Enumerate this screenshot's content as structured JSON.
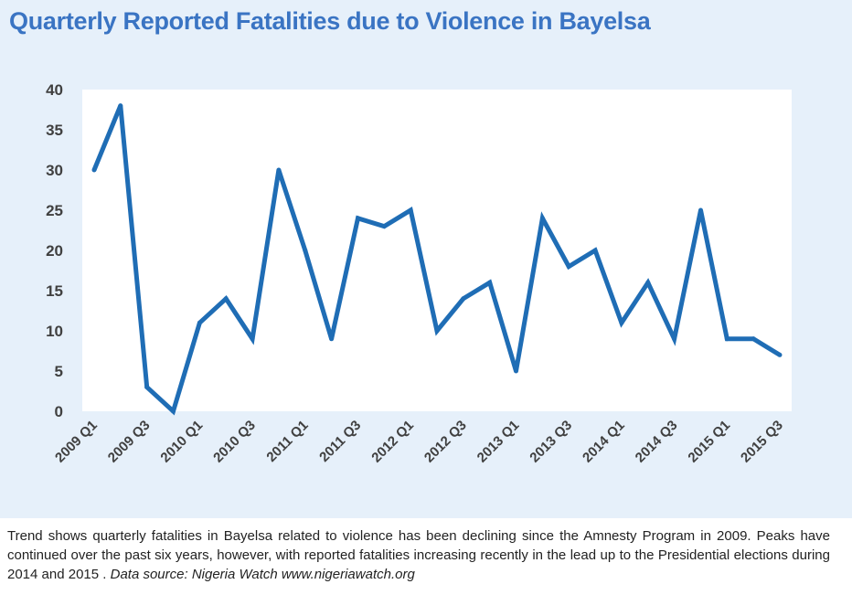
{
  "chart_data": {
    "type": "line",
    "title": "Quarterly Reported Fatalities due to Violence in Bayelsa",
    "xlabel": "",
    "ylabel": "",
    "ylim": [
      0,
      40
    ],
    "yticks": [
      "0",
      "5",
      "10",
      "15",
      "20",
      "25",
      "30",
      "35",
      "40"
    ],
    "categories": [
      "2009 Q1",
      "2009 Q2",
      "2009 Q3",
      "2009 Q4",
      "2010 Q1",
      "2010 Q2",
      "2010 Q3",
      "2010 Q4",
      "2011 Q1",
      "2011 Q2",
      "2011 Q3",
      "2011 Q4",
      "2012 Q1",
      "2012 Q2",
      "2012 Q3",
      "2012 Q4",
      "2013 Q1",
      "2013 Q2",
      "2013 Q3",
      "2013 Q4",
      "2014 Q1",
      "2014 Q2",
      "2014 Q3",
      "2014 Q4",
      "2015 Q1",
      "2015 Q2",
      "2015 Q3"
    ],
    "shown_tick_labels": [
      "2009 Q1",
      "2009 Q3",
      "2010 Q1",
      "2010 Q3",
      "2011 Q1",
      "2011 Q3",
      "2012 Q1",
      "2012 Q3",
      "2013 Q1",
      "2013 Q3",
      "2014 Q1",
      "2014 Q3",
      "2015 Q1",
      "2015 Q3"
    ],
    "series": [
      {
        "values": [
          30,
          38,
          3,
          0,
          11,
          14,
          9,
          30,
          20,
          9,
          24,
          23,
          25,
          10,
          14,
          16,
          5,
          24,
          18,
          20,
          11,
          16,
          9,
          25,
          9,
          9,
          7
        ]
      }
    ],
    "grid": false,
    "legend": "none",
    "line_color": "#1f6db5",
    "plot_background": "#ffffff",
    "panel_background": "#e6f0fa",
    "title_color": "#3a74c3"
  },
  "caption": {
    "text": "Trend shows quarterly fatalities in Bayelsa related to violence has been declining since the Amnesty Program in 2009.  Peaks have continued over the past six years, however, with reported fatalities increasing recently in the lead up to the Presidential elections during 2014 and 2015 . ",
    "source": "Data source: Nigeria Watch www.nigeriawatch.org"
  }
}
